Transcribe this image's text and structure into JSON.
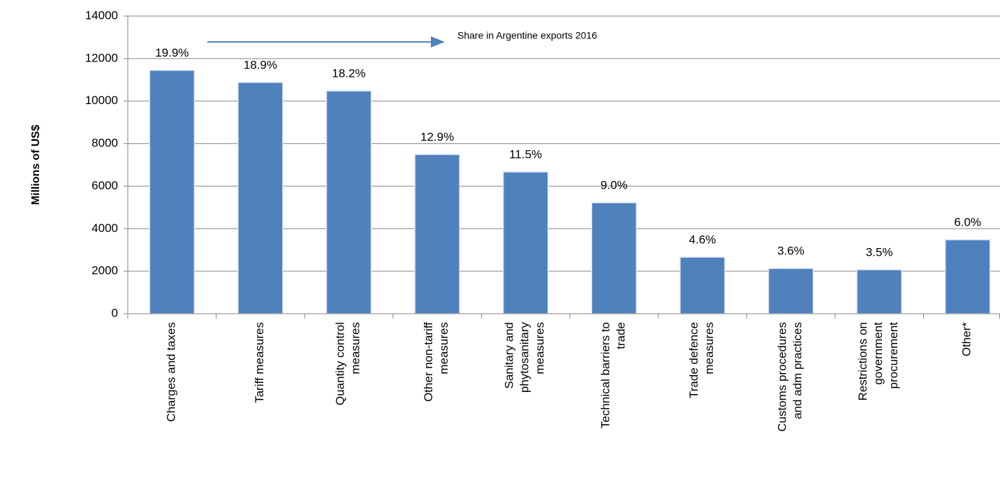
{
  "chart_data": {
    "type": "bar",
    "y_label": "Millions of US$",
    "annotation": "Share in Argentine exports 2016",
    "categories": [
      "Charges and taxes",
      "Tariff measures",
      "Quantity control\nmeasures",
      "Other non-tariff\nmeasures",
      "Sanitary and\nphytosanitary\nmeasures",
      "Technical barriers to\ntrade",
      "Trade defence\nmeasures",
      "Customs procedures\nand adm practices",
      "Restrictions on\ngovernment\nprocurement",
      "Other*"
    ],
    "values": [
      11450,
      10880,
      10480,
      7490,
      6670,
      5220,
      2660,
      2130,
      2070,
      3480
    ],
    "shares": [
      "19.9%",
      "18.9%",
      "18.2%",
      "12.9%",
      "11.5%",
      "9.0%",
      "4.6%",
      "3.6%",
      "3.5%",
      "6.0%"
    ],
    "color": "#4f81bd",
    "ylim": [
      0,
      14000
    ],
    "yticks": [
      0,
      2000,
      4000,
      6000,
      8000,
      10000,
      12000,
      14000
    ],
    "grid": true
  }
}
